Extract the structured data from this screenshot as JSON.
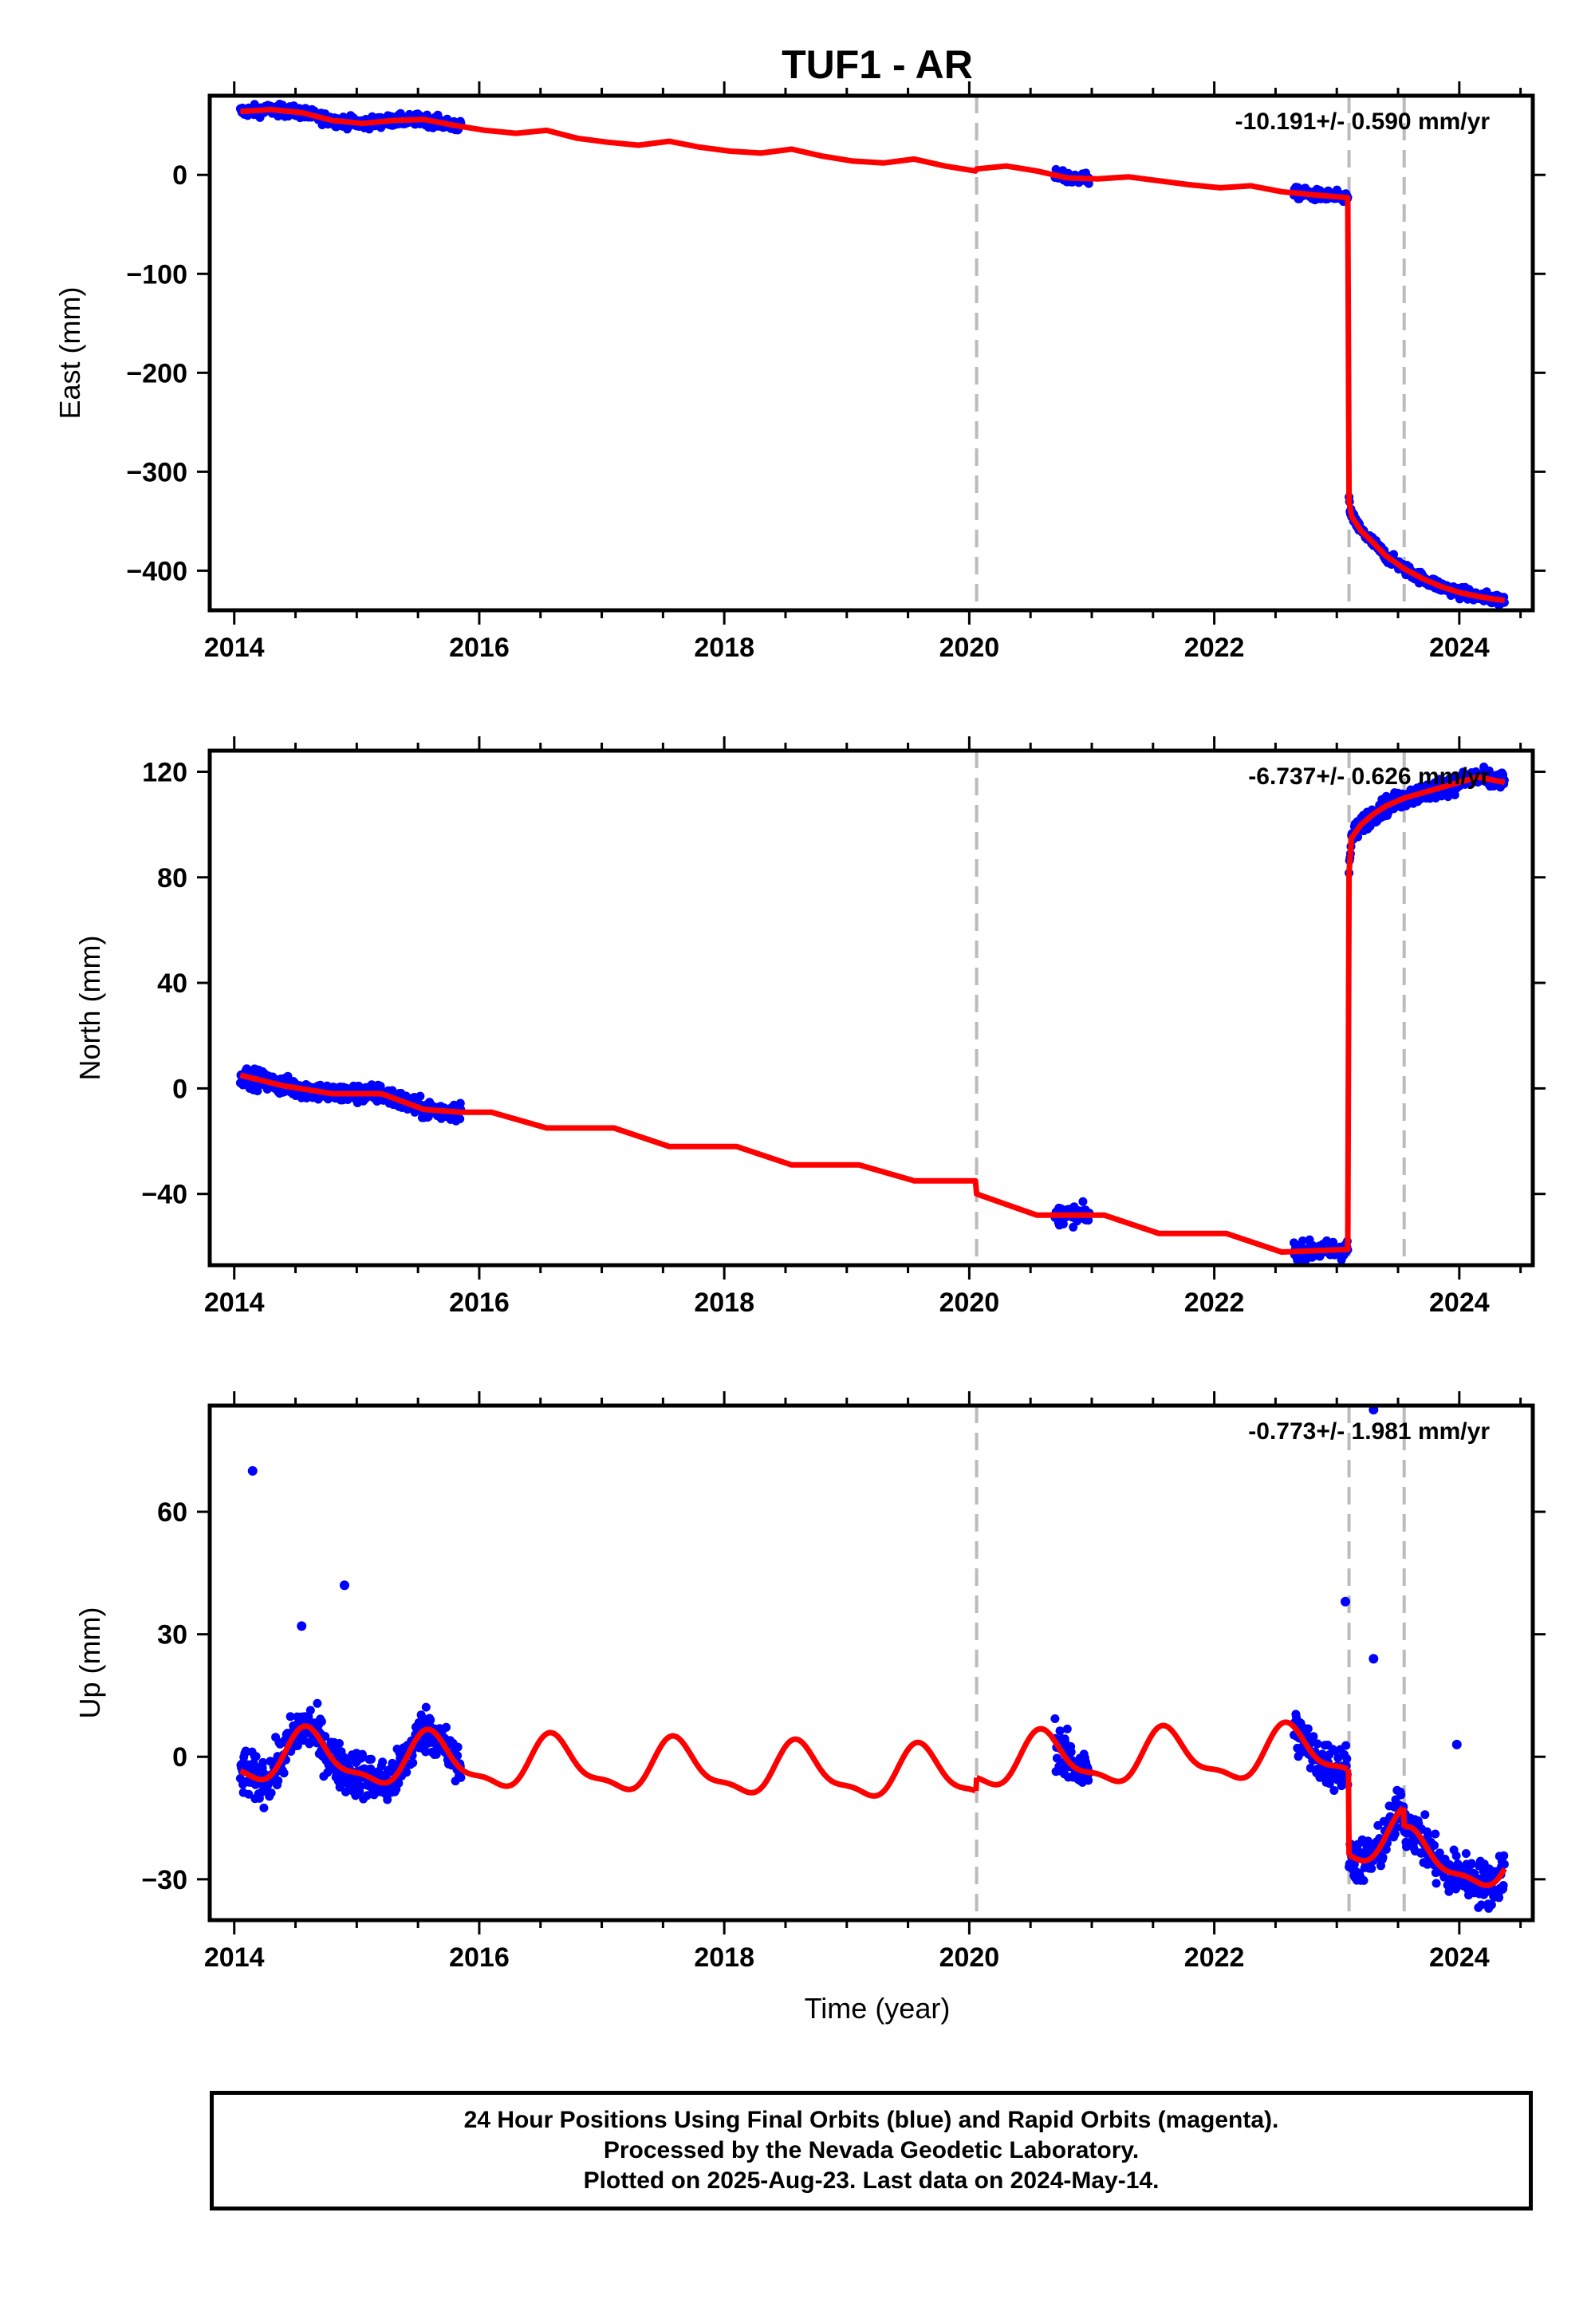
{
  "title": "TUF1 - AR",
  "xlabel": "Time (year)",
  "footer": [
    "24 Hour Positions Using Final Orbits (blue) and Rapid Orbits (magenta).",
    "Processed by the Nevada Geodetic Laboratory.",
    "Plotted on 2025-Aug-23. Last data on 2024-May-14."
  ],
  "colors": {
    "data": "#0000ff",
    "model": "#ff0000",
    "vline": "#bbbbbb",
    "frame": "#000000"
  },
  "chart_data": [
    {
      "type": "scatter",
      "panel": "east",
      "ylabel": "East (mm)",
      "rate_text": "-10.191+/- 0.590 mm/yr",
      "xlim": [
        2013.8,
        2024.6
      ],
      "ylim": [
        -440,
        80
      ],
      "xticks": [
        2014,
        2016,
        2018,
        2020,
        2022,
        2024
      ],
      "yticks": [
        0,
        -100,
        -200,
        -300,
        -400
      ],
      "vlines": [
        2020.06,
        2023.1,
        2023.55
      ],
      "model": {
        "x": [
          2014.05,
          2014.3,
          2014.55,
          2014.8,
          2015.05,
          2015.3,
          2015.55,
          2015.8,
          2016.05,
          2016.3,
          2016.55,
          2016.8,
          2017.05,
          2017.3,
          2017.55,
          2017.8,
          2018.05,
          2018.3,
          2018.55,
          2018.8,
          2019.05,
          2019.3,
          2019.55,
          2019.8,
          2020.05,
          2020.06,
          2020.3,
          2020.55,
          2020.8,
          2021.05,
          2021.3,
          2021.55,
          2021.8,
          2022.05,
          2022.3,
          2022.55,
          2022.8,
          2023.09,
          2023.1,
          2023.12,
          2023.2,
          2023.3,
          2023.4,
          2023.55,
          2023.7,
          2023.85,
          2024.0,
          2024.15,
          2024.3,
          2024.37
        ],
        "y": [
          64,
          66,
          63,
          55,
          52,
          55,
          56,
          50,
          45,
          42,
          45,
          37,
          33,
          30,
          34,
          28,
          24,
          22,
          26,
          19,
          14,
          12,
          16,
          9,
          4,
          6,
          9,
          4,
          -3,
          -4,
          -2,
          -6,
          -10,
          -13,
          -11,
          -17,
          -20,
          -23,
          -330,
          -345,
          -360,
          -372,
          -385,
          -398,
          -408,
          -416,
          -422,
          -426,
          -429,
          -430
        ]
      },
      "data_segments": [
        {
          "x0": 2014.05,
          "x1": 2015.85
        },
        {
          "x0": 2020.7,
          "x1": 2020.98
        },
        {
          "x0": 2022.65,
          "x1": 2023.09
        },
        {
          "x0": 2023.1,
          "x1": 2024.37
        }
      ],
      "data_scatter_mm": 4
    },
    {
      "type": "scatter",
      "panel": "north",
      "ylabel": "North (mm)",
      "rate_text": "-6.737+/- 0.626 mm/yr",
      "xlim": [
        2013.8,
        2024.6
      ],
      "ylim": [
        -67,
        128
      ],
      "xticks": [
        2014,
        2016,
        2018,
        2020,
        2022,
        2024
      ],
      "yticks": [
        120,
        80,
        40,
        0,
        -40
      ],
      "vlines": [
        2020.06,
        2023.1,
        2023.55
      ],
      "model": {
        "x": [
          2014.05,
          2014.4,
          2014.8,
          2015.2,
          2015.55,
          2015.85,
          2016.1,
          2016.55,
          2017.1,
          2017.55,
          2018.1,
          2018.55,
          2019.1,
          2019.55,
          2020.05,
          2020.06,
          2020.55,
          2021.1,
          2021.55,
          2022.1,
          2022.55,
          2023.09,
          2023.1,
          2023.12,
          2023.2,
          2023.3,
          2023.4,
          2023.55,
          2023.7,
          2023.85,
          2024.0,
          2024.15,
          2024.37
        ],
        "y": [
          5,
          1,
          -2,
          -2,
          -8,
          -9,
          -9,
          -15,
          -15,
          -22,
          -22,
          -29,
          -29,
          -35,
          -35,
          -40,
          -48,
          -48,
          -55,
          -55,
          -62,
          -61,
          82,
          95,
          100,
          104,
          107,
          110,
          112,
          114,
          116,
          118,
          116
        ]
      },
      "data_segments": [
        {
          "x0": 2014.05,
          "x1": 2015.85
        },
        {
          "x0": 2020.7,
          "x1": 2020.98
        },
        {
          "x0": 2022.65,
          "x1": 2023.09
        },
        {
          "x0": 2023.1,
          "x1": 2024.37
        }
      ],
      "data_scatter_mm": 2.5
    },
    {
      "type": "scatter",
      "panel": "up",
      "ylabel": "Up (mm)",
      "rate_text": "-0.773+/- 1.981 mm/yr",
      "xlim": [
        2013.8,
        2024.6
      ],
      "ylim": [
        -40,
        86
      ],
      "xticks": [
        2014,
        2016,
        2018,
        2020,
        2022,
        2024
      ],
      "yticks": [
        60,
        30,
        0,
        -30
      ],
      "vlines": [
        2020.06,
        2023.1,
        2023.55
      ],
      "model_periodic": {
        "amplitude": 6,
        "phase_year": 2014.61,
        "segments": [
          {
            "x0": 2014.05,
            "x1": 2020.055,
            "y0": 6,
            "slope": -0.8
          },
          {
            "x0": 2020.06,
            "x1": 2023.095,
            "y0": 4.5,
            "slope": 0.8
          },
          {
            "x0": 2023.1,
            "x1": 2023.545,
            "y0": -14,
            "slope": 0
          },
          {
            "x0": 2023.55,
            "x1": 2024.37,
            "y0": -19,
            "slope": -1.5
          }
        ]
      },
      "data_segments": [
        {
          "x0": 2014.05,
          "x1": 2015.85
        },
        {
          "x0": 2020.7,
          "x1": 2020.98
        },
        {
          "x0": 2022.65,
          "x1": 2023.09
        },
        {
          "x0": 2023.1,
          "x1": 2024.37
        }
      ],
      "data_scatter_mm": 4,
      "outliers": [
        {
          "x": 2014.15,
          "y": 70
        },
        {
          "x": 2014.9,
          "y": 42
        },
        {
          "x": 2014.55,
          "y": 32
        },
        {
          "x": 2023.07,
          "y": 38
        },
        {
          "x": 2023.3,
          "y": 24
        },
        {
          "x": 2023.98,
          "y": 3
        },
        {
          "x": 2023.3,
          "y": 85
        }
      ]
    }
  ]
}
